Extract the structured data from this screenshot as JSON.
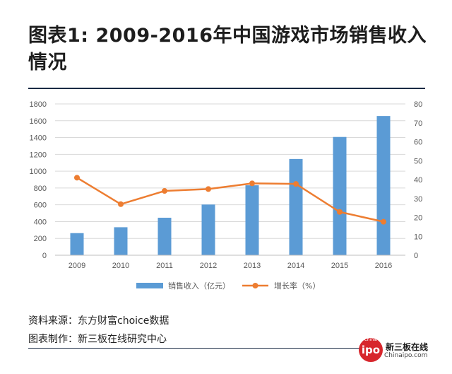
{
  "title": "图表1: 2009-2016年中国游戏市场销售收入情况",
  "source_label": "资料来源：东方财富choice数据",
  "maker_label": "图表制作：新三板在线研究中心",
  "logo": {
    "badge_small": "Chinai",
    "badge_main": "ipo",
    "name_cn": "新三板在线",
    "name_en": "Chinaipo.com"
  },
  "colors": {
    "bar": "#5b9bd5",
    "line": "#ed7d31",
    "grid": "#d9d9d9",
    "axis_text": "#595959"
  },
  "chart_data": {
    "type": "bar",
    "categories": [
      "2009",
      "2010",
      "2011",
      "2012",
      "2013",
      "2014",
      "2015",
      "2016"
    ],
    "series": [
      {
        "name": "销售收入（亿元）",
        "type": "bar",
        "axis": "left",
        "values": [
          263,
          333,
          446,
          603,
          832,
          1145,
          1407,
          1656
        ]
      },
      {
        "name": "增长率（%）",
        "type": "line",
        "axis": "right",
        "values": [
          41,
          27,
          34,
          35,
          38,
          37.7,
          22.9,
          17.7
        ]
      }
    ],
    "y_left": {
      "min": 0,
      "max": 1800,
      "ticks": [
        0,
        200,
        400,
        600,
        800,
        1000,
        1200,
        1400,
        1600,
        1800
      ]
    },
    "y_right": {
      "min": 0,
      "max": 80,
      "ticks": [
        0,
        10,
        20,
        30,
        40,
        50,
        60,
        70,
        80
      ]
    },
    "legend_position": "bottom"
  }
}
